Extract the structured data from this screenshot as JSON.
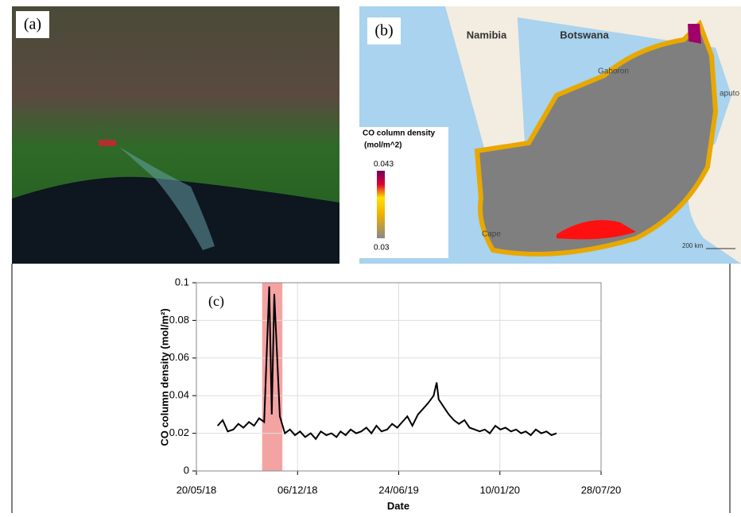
{
  "panels": {
    "a": {
      "label": "(a)"
    },
    "b": {
      "label": "(b)",
      "places": [
        "Namibia",
        "Botswana",
        "Gaboron",
        "aputo",
        "Cape"
      ],
      "legend_title": "CO column density",
      "legend_unit": "(mol/m^2)",
      "legend_max": "0.043",
      "legend_min": "0.03",
      "scale": "200 km"
    }
  },
  "chart_data": {
    "type": "line",
    "panel_label": "(c)",
    "x_label": "Date",
    "y_label": "CO column density (mol/m²)",
    "xlim": [
      "2018-05-20",
      "2020-07-28"
    ],
    "xticks": [
      {
        "value": "2018-05-20",
        "label": "20/05/18"
      },
      {
        "value": "2018-12-06",
        "label": "06/12/18"
      },
      {
        "value": "2019-06-24",
        "label": "24/06/19"
      },
      {
        "value": "2020-01-10",
        "label": "10/01/20"
      },
      {
        "value": "2020-07-28",
        "label": "28/07/20"
      }
    ],
    "ylim": [
      0,
      0.1
    ],
    "yticks": [
      0,
      0.02,
      0.04,
      0.06,
      0.08,
      0.1
    ],
    "grid": true,
    "highlight": {
      "xlim": [
        "2018-09-27",
        "2018-11-06"
      ],
      "color": "#f4a3a3"
    },
    "x": [
      "2018-07-01",
      "2018-07-11",
      "2018-07-21",
      "2018-08-01",
      "2018-08-11",
      "2018-08-21",
      "2018-09-01",
      "2018-09-11",
      "2018-09-21",
      "2018-10-01",
      "2018-10-11",
      "2018-10-16",
      "2018-10-21",
      "2018-11-01",
      "2018-11-11",
      "2018-11-21",
      "2018-12-01",
      "2018-12-11",
      "2018-12-21",
      "2019-01-01",
      "2019-01-11",
      "2019-01-21",
      "2019-02-01",
      "2019-02-11",
      "2019-02-21",
      "2019-03-01",
      "2019-03-11",
      "2019-03-21",
      "2019-04-01",
      "2019-04-11",
      "2019-04-21",
      "2019-05-01",
      "2019-05-11",
      "2019-05-21",
      "2019-06-01",
      "2019-06-11",
      "2019-06-21",
      "2019-07-01",
      "2019-07-11",
      "2019-07-21",
      "2019-08-01",
      "2019-08-11",
      "2019-08-21",
      "2019-09-01",
      "2019-09-07",
      "2019-09-11",
      "2019-09-21",
      "2019-10-01",
      "2019-10-11",
      "2019-10-21",
      "2019-11-01",
      "2019-11-11",
      "2019-11-21",
      "2019-12-01",
      "2019-12-11",
      "2019-12-21",
      "2020-01-01",
      "2020-01-11",
      "2020-01-21",
      "2020-02-01",
      "2020-02-11",
      "2020-02-21",
      "2020-03-01",
      "2020-03-11",
      "2020-03-21",
      "2020-04-01",
      "2020-04-11",
      "2020-04-21",
      "2020-05-01"
    ],
    "series": [
      {
        "color": "#000000",
        "values": [
          0.024,
          0.027,
          0.021,
          0.022,
          0.025,
          0.023,
          0.026,
          0.024,
          0.028,
          0.026,
          0.098,
          0.03,
          0.094,
          0.029,
          0.02,
          0.022,
          0.019,
          0.021,
          0.018,
          0.02,
          0.017,
          0.021,
          0.019,
          0.02,
          0.018,
          0.021,
          0.019,
          0.022,
          0.02,
          0.021,
          0.023,
          0.02,
          0.024,
          0.021,
          0.022,
          0.025,
          0.023,
          0.026,
          0.029,
          0.024,
          0.03,
          0.033,
          0.036,
          0.04,
          0.047,
          0.038,
          0.034,
          0.03,
          0.027,
          0.025,
          0.027,
          0.023,
          0.022,
          0.021,
          0.022,
          0.02,
          0.024,
          0.022,
          0.023,
          0.021,
          0.022,
          0.02,
          0.021,
          0.019,
          0.022,
          0.02,
          0.021,
          0.019,
          0.02
        ]
      }
    ]
  }
}
